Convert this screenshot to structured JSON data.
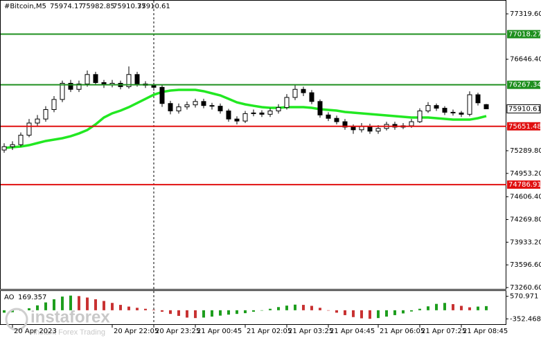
{
  "chart_data": {
    "type": "candlestick",
    "title": "#Bitcoin,M5",
    "categories": [
      null,
      "20 Apr 2023",
      null,
      null,
      null,
      null,
      null,
      null,
      null,
      null,
      null,
      null,
      null,
      "20 Apr 22:05",
      null,
      null,
      null,
      null,
      "20 Apr 23:25",
      null,
      null,
      null,
      null,
      "21 Apr 00:45",
      null,
      null,
      null,
      null,
      null,
      "21 Apr 02:05",
      null,
      null,
      null,
      null,
      "21 Apr 03:25",
      null,
      null,
      null,
      null,
      "21 Apr 04:45",
      null,
      null,
      null,
      null,
      null,
      "21 Apr 06:05",
      null,
      null,
      null,
      null,
      "21 Apr 07:25",
      null,
      null,
      null,
      null,
      "21 Apr 08:45",
      null,
      null,
      null
    ],
    "open": [
      75300,
      75350,
      75380,
      75520,
      75700,
      75760,
      75900,
      76050,
      76290,
      76200,
      76280,
      76420,
      76300,
      76270,
      76290,
      76240,
      76420,
      76280,
      76260,
      76230,
      75990,
      75880,
      75940,
      75970,
      76020,
      75960,
      75950,
      75880,
      75760,
      75730,
      75840,
      75850,
      75830,
      75880,
      75930,
      76080,
      76200,
      76150,
      76020,
      75820,
      75770,
      75720,
      75640,
      75600,
      75650,
      75580,
      75620,
      75680,
      75640,
      75660,
      75720,
      75880,
      75960,
      75920,
      75860,
      75850,
      75830,
      76120,
      75974.17
    ],
    "high": [
      75400,
      75430,
      75560,
      75760,
      75820,
      75950,
      76100,
      76330,
      76340,
      76330,
      76480,
      76460,
      76340,
      76340,
      76330,
      76540,
      76460,
      76320,
      76300,
      76260,
      76030,
      75990,
      76020,
      76060,
      76060,
      76000,
      75990,
      75910,
      75800,
      75880,
      75900,
      75890,
      75920,
      75980,
      76130,
      76260,
      76240,
      76190,
      76050,
      75860,
      75810,
      75760,
      75680,
      75700,
      75690,
      75670,
      75720,
      75720,
      75700,
      75760,
      75920,
      76010,
      75990,
      75950,
      75900,
      75880,
      76170,
      76150,
      75982.85
    ],
    "low": [
      75260,
      75300,
      75350,
      75490,
      75660,
      75720,
      75860,
      76010,
      76160,
      76160,
      76240,
      76260,
      76220,
      76230,
      76200,
      76210,
      76240,
      76220,
      76180,
      75940,
      75830,
      75840,
      75900,
      75930,
      75920,
      75900,
      75840,
      75720,
      75680,
      75700,
      75800,
      75790,
      75790,
      75840,
      75900,
      76040,
      76100,
      75980,
      75780,
      75730,
      75680,
      75600,
      75540,
      75560,
      75540,
      75540,
      75590,
      75600,
      75610,
      75630,
      75700,
      75850,
      75880,
      75820,
      75810,
      75790,
      75800,
      75960,
      75910.37
    ],
    "close": [
      75350,
      75380,
      75520,
      75700,
      75760,
      75900,
      76050,
      76290,
      76200,
      76280,
      76420,
      76300,
      76270,
      76290,
      76240,
      76420,
      76280,
      76260,
      76230,
      75990,
      75880,
      75940,
      75970,
      76020,
      75960,
      75950,
      75880,
      75760,
      75730,
      75840,
      75850,
      75830,
      75880,
      75930,
      76080,
      76200,
      76150,
      76020,
      75820,
      75770,
      75720,
      75640,
      75600,
      75650,
      75580,
      75620,
      75680,
      75640,
      75660,
      75720,
      75880,
      75960,
      75920,
      75860,
      75850,
      75830,
      76120,
      76000,
      75910.61
    ],
    "up_color": "#ffffff",
    "down_color": "#000000",
    "ylim": [
      73240,
      77443
    ],
    "yticks": [
      {
        "value": 77319.6,
        "label": "77319.60"
      },
      {
        "value": 76646.4,
        "label": "76646.40"
      },
      {
        "value": 75289.8,
        "label": "75289.80"
      },
      {
        "value": 74953.2,
        "label": "74953.20"
      },
      {
        "value": 74606.4,
        "label": "74606.40"
      },
      {
        "value": 74269.8,
        "label": "74269.80"
      },
      {
        "value": 73933.2,
        "label": "73933.20"
      },
      {
        "value": 73596.6,
        "label": "73596.60"
      },
      {
        "value": 73260.6,
        "label": "73260.60"
      }
    ],
    "levels": [
      {
        "value": 77018.27,
        "color": "#1f8f1f"
      },
      {
        "value": 76267.34,
        "color": "#1f8f1f"
      },
      {
        "value": 75651.48,
        "color": "#e01010"
      },
      {
        "value": 74786.91,
        "color": "#e01010"
      }
    ],
    "ma": {
      "color": "#22e822",
      "values": [
        75331,
        75341,
        75352,
        75372,
        75403,
        75434,
        75454,
        75475,
        75505,
        75546,
        75597,
        75680,
        75782,
        75844,
        75885,
        75936,
        75997,
        76059,
        76120,
        76161,
        76182,
        76192,
        76192,
        76192,
        76172,
        76141,
        76110,
        76059,
        76007,
        75977,
        75956,
        75936,
        75926,
        75926,
        75936,
        75936,
        75936,
        75926,
        75905,
        75895,
        75885,
        75864,
        75854,
        75844,
        75833,
        75823,
        75813,
        75803,
        75792,
        75782,
        75782,
        75782,
        75772,
        75762,
        75751,
        75751,
        75751,
        75772,
        75803
      ]
    },
    "indicator": {
      "type": "bar",
      "title": "AO",
      "values": [
        -100,
        -80,
        -20,
        80,
        200,
        320,
        450,
        560,
        600,
        580,
        520,
        450,
        380,
        300,
        220,
        150,
        100,
        60,
        20,
        -60,
        -150,
        -230,
        -300,
        -320,
        -300,
        -260,
        -220,
        -180,
        -150,
        -120,
        -60,
        0,
        60,
        130,
        190,
        230,
        220,
        180,
        100,
        0,
        -100,
        -200,
        -280,
        -330,
        -350,
        -320,
        -260,
        -200,
        -130,
        -50,
        60,
        160,
        260,
        300,
        250,
        180,
        120,
        150,
        169.357
      ],
      "up_color": "#1e9e1e",
      "down_color": "#c83232",
      "ylim": [
        -570,
        788
      ],
      "yticks": [
        570.971,
        -352.468
      ]
    },
    "watermark": {
      "brand": "instaforex",
      "tagline": "Instant Forex Trading"
    }
  }
}
